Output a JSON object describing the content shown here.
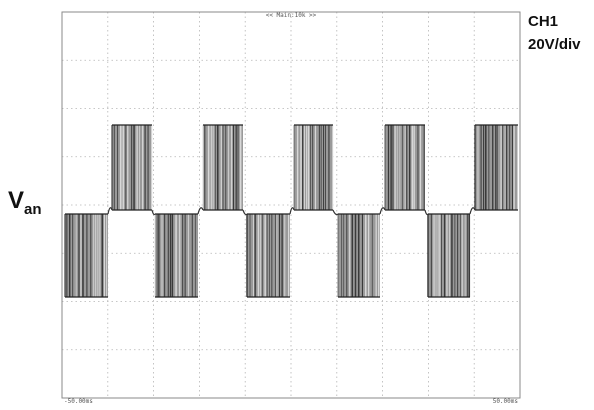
{
  "top_label": "<< Main:10k >>",
  "channel": {
    "name": "CH1",
    "scale": "20V/div"
  },
  "signal_label": {
    "main": "V",
    "subscript": "an"
  },
  "time_axis": {
    "start": "-50.00ms",
    "end": "50.00ms"
  }
}
